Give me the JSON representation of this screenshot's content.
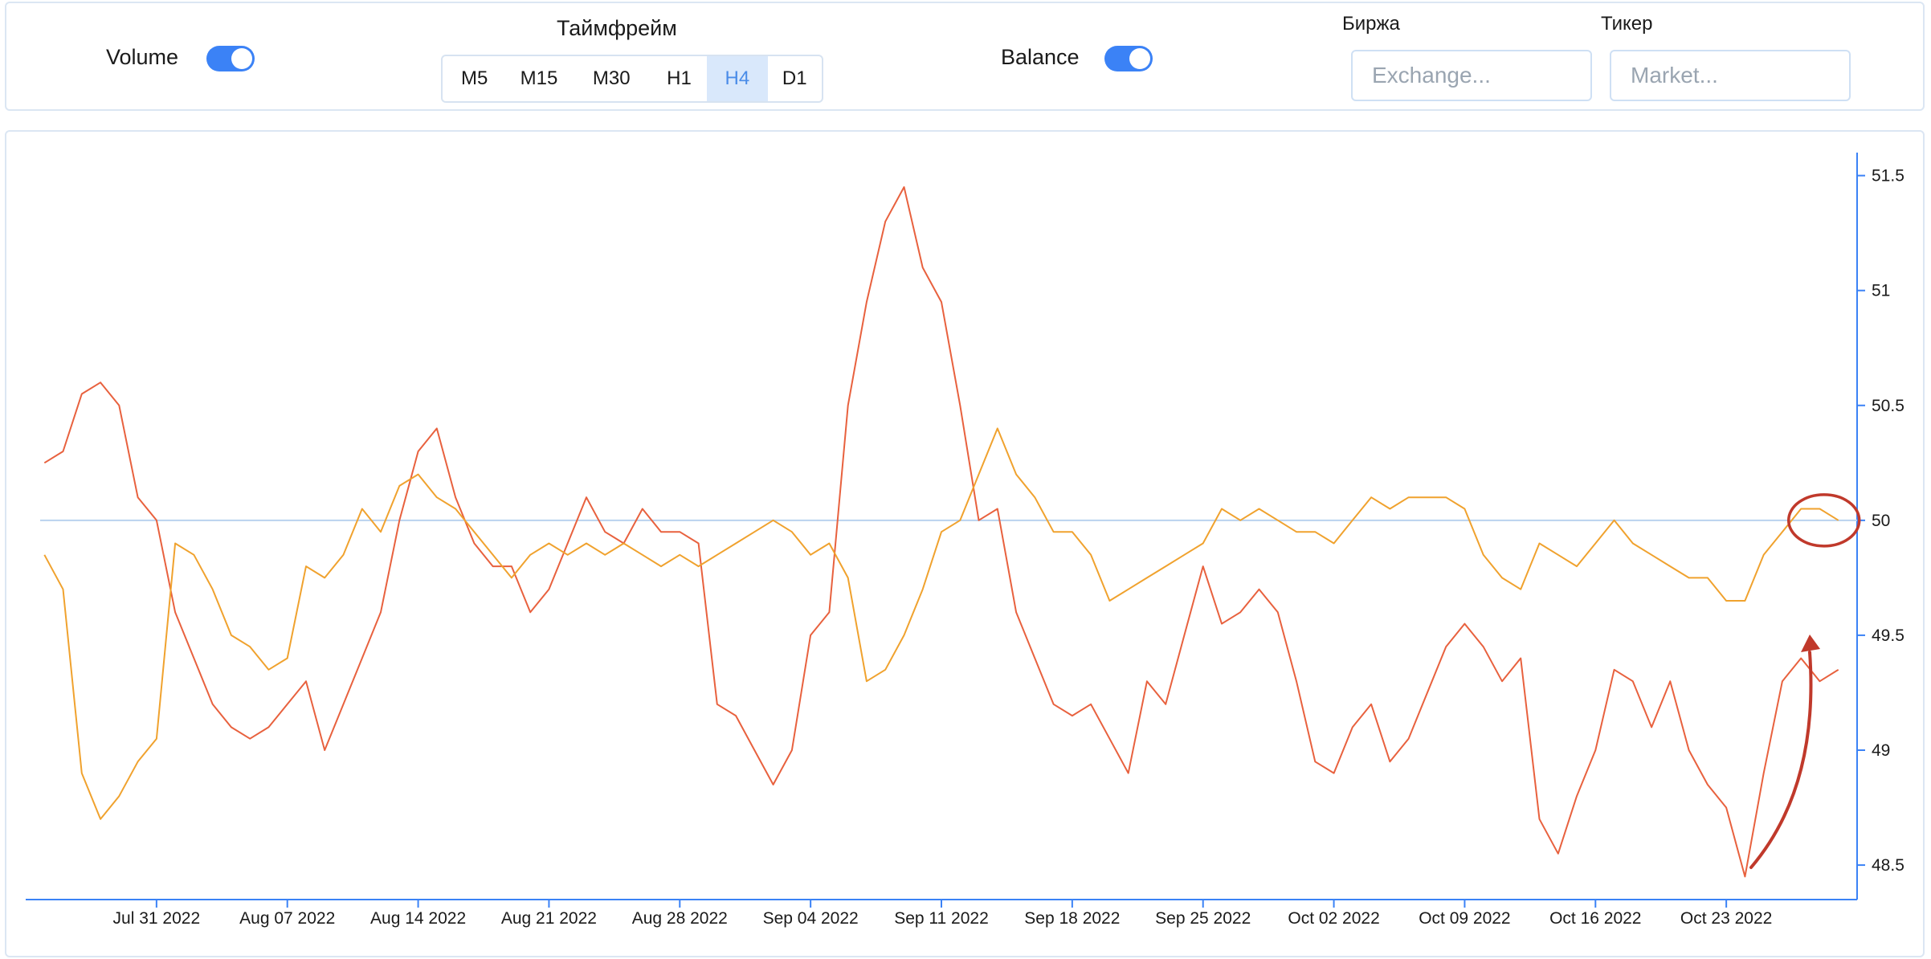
{
  "controls": {
    "volume_label": "Volume",
    "volume_on": true,
    "timeframe_title": "Таймфрейм",
    "timeframes": [
      "M5",
      "M15",
      "M30",
      "H1",
      "H4",
      "D1"
    ],
    "active_timeframe": "H4",
    "balance_label": "Balance",
    "balance_on": true,
    "exchange_label": "Биржа",
    "exchange_placeholder": "Exchange...",
    "ticker_label": "Тикер",
    "ticker_placeholder": "Market...",
    "accent_color": "#3b82f6"
  },
  "chart_data": {
    "type": "line",
    "x_ticks": [
      "Jul 31 2022",
      "Aug 07 2022",
      "Aug 14 2022",
      "Aug 21 2022",
      "Aug 28 2022",
      "Sep 04 2022",
      "Sep 11 2022",
      "Sep 18 2022",
      "Sep 25 2022",
      "Oct 02 2022",
      "Oct 09 2022",
      "Oct 16 2022",
      "Oct 23 2022"
    ],
    "y_ticks": [
      48.5,
      49,
      49.5,
      50,
      50.5,
      51,
      51.5
    ],
    "ylim": [
      48.35,
      51.6
    ],
    "xlim": [
      "2022-07-24",
      "2022-10-30"
    ],
    "reference_line": 50,
    "series": [
      {
        "color": "#e8613e",
        "points": [
          [
            "2022-07-25",
            50.25
          ],
          [
            "2022-07-26",
            50.3
          ],
          [
            "2022-07-27",
            50.55
          ],
          [
            "2022-07-28",
            50.6
          ],
          [
            "2022-07-29",
            50.5
          ],
          [
            "2022-07-30",
            50.1
          ],
          [
            "2022-07-31",
            50.0
          ],
          [
            "2022-08-01",
            49.6
          ],
          [
            "2022-08-02",
            49.4
          ],
          [
            "2022-08-03",
            49.2
          ],
          [
            "2022-08-04",
            49.1
          ],
          [
            "2022-08-05",
            49.05
          ],
          [
            "2022-08-06",
            49.1
          ],
          [
            "2022-08-07",
            49.2
          ],
          [
            "2022-08-08",
            49.3
          ],
          [
            "2022-08-09",
            49.0
          ],
          [
            "2022-08-10",
            49.2
          ],
          [
            "2022-08-11",
            49.4
          ],
          [
            "2022-08-12",
            49.6
          ],
          [
            "2022-08-13",
            50.0
          ],
          [
            "2022-08-14",
            50.3
          ],
          [
            "2022-08-15",
            50.4
          ],
          [
            "2022-08-16",
            50.1
          ],
          [
            "2022-08-17",
            49.9
          ],
          [
            "2022-08-18",
            49.8
          ],
          [
            "2022-08-19",
            49.8
          ],
          [
            "2022-08-20",
            49.6
          ],
          [
            "2022-08-21",
            49.7
          ],
          [
            "2022-08-22",
            49.9
          ],
          [
            "2022-08-23",
            50.1
          ],
          [
            "2022-08-24",
            49.95
          ],
          [
            "2022-08-25",
            49.9
          ],
          [
            "2022-08-26",
            50.05
          ],
          [
            "2022-08-27",
            49.95
          ],
          [
            "2022-08-28",
            49.95
          ],
          [
            "2022-08-29",
            49.9
          ],
          [
            "2022-08-30",
            49.2
          ],
          [
            "2022-08-31",
            49.15
          ],
          [
            "2022-09-01",
            49.0
          ],
          [
            "2022-09-02",
            48.85
          ],
          [
            "2022-09-03",
            49.0
          ],
          [
            "2022-09-04",
            49.5
          ],
          [
            "2022-09-05",
            49.6
          ],
          [
            "2022-09-06",
            50.5
          ],
          [
            "2022-09-07",
            50.95
          ],
          [
            "2022-09-08",
            51.3
          ],
          [
            "2022-09-09",
            51.45
          ],
          [
            "2022-09-10",
            51.1
          ],
          [
            "2022-09-11",
            50.95
          ],
          [
            "2022-09-12",
            50.5
          ],
          [
            "2022-09-13",
            50.0
          ],
          [
            "2022-09-14",
            50.05
          ],
          [
            "2022-09-15",
            49.6
          ],
          [
            "2022-09-16",
            49.4
          ],
          [
            "2022-09-17",
            49.2
          ],
          [
            "2022-09-18",
            49.15
          ],
          [
            "2022-09-19",
            49.2
          ],
          [
            "2022-09-20",
            49.05
          ],
          [
            "2022-09-21",
            48.9
          ],
          [
            "2022-09-22",
            49.3
          ],
          [
            "2022-09-23",
            49.2
          ],
          [
            "2022-09-24",
            49.5
          ],
          [
            "2022-09-25",
            49.8
          ],
          [
            "2022-09-26",
            49.55
          ],
          [
            "2022-09-27",
            49.6
          ],
          [
            "2022-09-28",
            49.7
          ],
          [
            "2022-09-29",
            49.6
          ],
          [
            "2022-09-30",
            49.3
          ],
          [
            "2022-10-01",
            48.95
          ],
          [
            "2022-10-02",
            48.9
          ],
          [
            "2022-10-03",
            49.1
          ],
          [
            "2022-10-04",
            49.2
          ],
          [
            "2022-10-05",
            48.95
          ],
          [
            "2022-10-06",
            49.05
          ],
          [
            "2022-10-07",
            49.25
          ],
          [
            "2022-10-08",
            49.45
          ],
          [
            "2022-10-09",
            49.55
          ],
          [
            "2022-10-10",
            49.45
          ],
          [
            "2022-10-11",
            49.3
          ],
          [
            "2022-10-12",
            49.4
          ],
          [
            "2022-10-13",
            48.7
          ],
          [
            "2022-10-14",
            48.55
          ],
          [
            "2022-10-15",
            48.8
          ],
          [
            "2022-10-16",
            49.0
          ],
          [
            "2022-10-17",
            49.35
          ],
          [
            "2022-10-18",
            49.3
          ],
          [
            "2022-10-19",
            49.1
          ],
          [
            "2022-10-20",
            49.3
          ],
          [
            "2022-10-21",
            49.0
          ],
          [
            "2022-10-22",
            48.85
          ],
          [
            "2022-10-23",
            48.75
          ],
          [
            "2022-10-24",
            48.45
          ],
          [
            "2022-10-25",
            48.9
          ],
          [
            "2022-10-26",
            49.3
          ],
          [
            "2022-10-27",
            49.4
          ],
          [
            "2022-10-28",
            49.3
          ],
          [
            "2022-10-29",
            49.35
          ]
        ]
      },
      {
        "color": "#f0a22e",
        "points": [
          [
            "2022-07-25",
            49.85
          ],
          [
            "2022-07-26",
            49.7
          ],
          [
            "2022-07-27",
            48.9
          ],
          [
            "2022-07-28",
            48.7
          ],
          [
            "2022-07-29",
            48.8
          ],
          [
            "2022-07-30",
            48.95
          ],
          [
            "2022-07-31",
            49.05
          ],
          [
            "2022-08-01",
            49.9
          ],
          [
            "2022-08-02",
            49.85
          ],
          [
            "2022-08-03",
            49.7
          ],
          [
            "2022-08-04",
            49.5
          ],
          [
            "2022-08-05",
            49.45
          ],
          [
            "2022-08-06",
            49.35
          ],
          [
            "2022-08-07",
            49.4
          ],
          [
            "2022-08-08",
            49.8
          ],
          [
            "2022-08-09",
            49.75
          ],
          [
            "2022-08-10",
            49.85
          ],
          [
            "2022-08-11",
            50.05
          ],
          [
            "2022-08-12",
            49.95
          ],
          [
            "2022-08-13",
            50.15
          ],
          [
            "2022-08-14",
            50.2
          ],
          [
            "2022-08-15",
            50.1
          ],
          [
            "2022-08-16",
            50.05
          ],
          [
            "2022-08-17",
            49.95
          ],
          [
            "2022-08-18",
            49.85
          ],
          [
            "2022-08-19",
            49.75
          ],
          [
            "2022-08-20",
            49.85
          ],
          [
            "2022-08-21",
            49.9
          ],
          [
            "2022-08-22",
            49.85
          ],
          [
            "2022-08-23",
            49.9
          ],
          [
            "2022-08-24",
            49.85
          ],
          [
            "2022-08-25",
            49.9
          ],
          [
            "2022-08-26",
            49.85
          ],
          [
            "2022-08-27",
            49.8
          ],
          [
            "2022-08-28",
            49.85
          ],
          [
            "2022-08-29",
            49.8
          ],
          [
            "2022-08-30",
            49.85
          ],
          [
            "2022-08-31",
            49.9
          ],
          [
            "2022-09-01",
            49.95
          ],
          [
            "2022-09-02",
            50.0
          ],
          [
            "2022-09-03",
            49.95
          ],
          [
            "2022-09-04",
            49.85
          ],
          [
            "2022-09-05",
            49.9
          ],
          [
            "2022-09-06",
            49.75
          ],
          [
            "2022-09-07",
            49.3
          ],
          [
            "2022-09-08",
            49.35
          ],
          [
            "2022-09-09",
            49.5
          ],
          [
            "2022-09-10",
            49.7
          ],
          [
            "2022-09-11",
            49.95
          ],
          [
            "2022-09-12",
            50.0
          ],
          [
            "2022-09-13",
            50.2
          ],
          [
            "2022-09-14",
            50.4
          ],
          [
            "2022-09-15",
            50.2
          ],
          [
            "2022-09-16",
            50.1
          ],
          [
            "2022-09-17",
            49.95
          ],
          [
            "2022-09-18",
            49.95
          ],
          [
            "2022-09-19",
            49.85
          ],
          [
            "2022-09-20",
            49.65
          ],
          [
            "2022-09-21",
            49.7
          ],
          [
            "2022-09-22",
            49.75
          ],
          [
            "2022-09-23",
            49.8
          ],
          [
            "2022-09-24",
            49.85
          ],
          [
            "2022-09-25",
            49.9
          ],
          [
            "2022-09-26",
            50.05
          ],
          [
            "2022-09-27",
            50.0
          ],
          [
            "2022-09-28",
            50.05
          ],
          [
            "2022-09-29",
            50.0
          ],
          [
            "2022-09-30",
            49.95
          ],
          [
            "2022-10-01",
            49.95
          ],
          [
            "2022-10-02",
            49.9
          ],
          [
            "2022-10-03",
            50.0
          ],
          [
            "2022-10-04",
            50.1
          ],
          [
            "2022-10-05",
            50.05
          ],
          [
            "2022-10-06",
            50.1
          ],
          [
            "2022-10-07",
            50.1
          ],
          [
            "2022-10-08",
            50.1
          ],
          [
            "2022-10-09",
            50.05
          ],
          [
            "2022-10-10",
            49.85
          ],
          [
            "2022-10-11",
            49.75
          ],
          [
            "2022-10-12",
            49.7
          ],
          [
            "2022-10-13",
            49.9
          ],
          [
            "2022-10-14",
            49.85
          ],
          [
            "2022-10-15",
            49.8
          ],
          [
            "2022-10-16",
            49.9
          ],
          [
            "2022-10-17",
            50.0
          ],
          [
            "2022-10-18",
            49.9
          ],
          [
            "2022-10-19",
            49.85
          ],
          [
            "2022-10-20",
            49.8
          ],
          [
            "2022-10-21",
            49.75
          ],
          [
            "2022-10-22",
            49.75
          ],
          [
            "2022-10-23",
            49.65
          ],
          [
            "2022-10-24",
            49.65
          ],
          [
            "2022-10-25",
            49.85
          ],
          [
            "2022-10-26",
            49.95
          ],
          [
            "2022-10-27",
            50.05
          ],
          [
            "2022-10-28",
            50.05
          ],
          [
            "2022-10-29",
            50.0
          ]
        ]
      }
    ],
    "annotation_color": "#c0392b"
  }
}
